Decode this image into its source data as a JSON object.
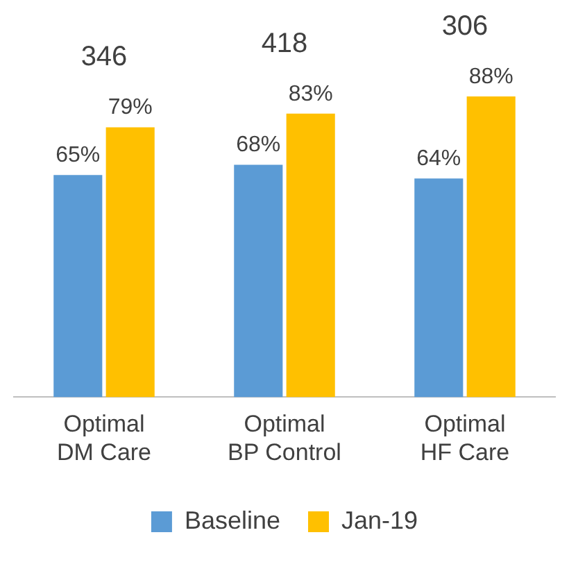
{
  "chart_data": {
    "type": "bar",
    "categories": [
      "Optimal\nDM Care",
      "Optimal\nBP Control",
      "Optimal\nHF Care"
    ],
    "series": [
      {
        "name": "Baseline",
        "color": "#5b9bd5",
        "values": [
          65,
          68,
          64
        ],
        "value_labels": [
          "65%",
          "68%",
          "64%"
        ]
      },
      {
        "name": "Jan-19",
        "color": "#ffc000",
        "values": [
          79,
          83,
          88
        ],
        "value_labels": [
          "79%",
          "83%",
          "88%"
        ]
      }
    ],
    "annotations": [
      "346",
      "418",
      "306"
    ],
    "tick_labels": "x",
    "grid": false,
    "legend": "bottom"
  }
}
